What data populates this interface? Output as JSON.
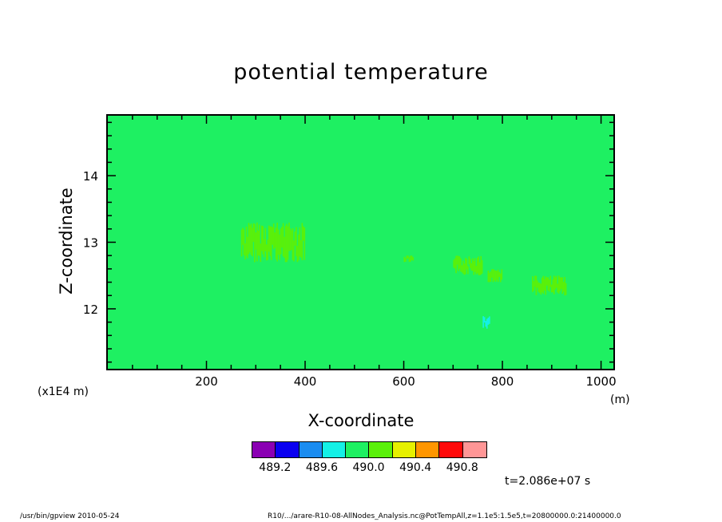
{
  "chart_data": {
    "type": "heatmap",
    "title": "potential temperature",
    "xlabel": "X-coordinate",
    "ylabel": "Z-coordinate",
    "x_unit": "(m)",
    "y_unit": "(x1E4 m)",
    "xlim": [
      0,
      1025
    ],
    "ylim": [
      11.1,
      14.9
    ],
    "x_ticks": [
      200,
      400,
      600,
      800,
      1000
    ],
    "y_ticks": [
      12,
      13,
      14
    ],
    "background_value_range": [
      490.0,
      490.2
    ],
    "colorbar": {
      "colors": [
        "#8a00b3",
        "#0a00f0",
        "#1a8cf0",
        "#14f0e6",
        "#1ef062",
        "#5af00a",
        "#e6f000",
        "#ff9600",
        "#ff0a0a",
        "#ff9696"
      ],
      "labels": [
        "489.2",
        "489.6",
        "490.0",
        "490.4",
        "490.8"
      ]
    },
    "anomalies": [
      {
        "x_range": [
          270,
          400
        ],
        "z_range": [
          12.7,
          13.3
        ],
        "value_range": [
          490.2,
          490.4
        ],
        "color": "#5af00a"
      },
      {
        "x_range": [
          600,
          620
        ],
        "z_range": [
          12.7,
          12.8
        ],
        "value_range": [
          490.2,
          490.4
        ],
        "color": "#5af00a"
      },
      {
        "x_range": [
          700,
          760
        ],
        "z_range": [
          12.5,
          12.8
        ],
        "value_range": [
          490.2,
          490.4
        ],
        "color": "#5af00a"
      },
      {
        "x_range": [
          770,
          800
        ],
        "z_range": [
          12.4,
          12.6
        ],
        "value_range": [
          490.2,
          490.4
        ],
        "color": "#5af00a"
      },
      {
        "x_range": [
          860,
          930
        ],
        "z_range": [
          12.2,
          12.5
        ],
        "value_range": [
          490.2,
          490.4
        ],
        "color": "#5af00a"
      },
      {
        "x_range": [
          760,
          775
        ],
        "z_range": [
          11.7,
          11.9
        ],
        "value_range": [
          489.8,
          490.0
        ],
        "color": "#14f0e6"
      }
    ]
  },
  "annotations": {
    "time": "t=2.086e+07 s",
    "footer_left": "/usr/bin/gpview   2010-05-24",
    "footer_right": "R10/.../arare-R10-08-AllNodes_Analysis.nc@PotTempAll,z=1.1e5:1.5e5,t=20800000.0:21400000.0"
  }
}
